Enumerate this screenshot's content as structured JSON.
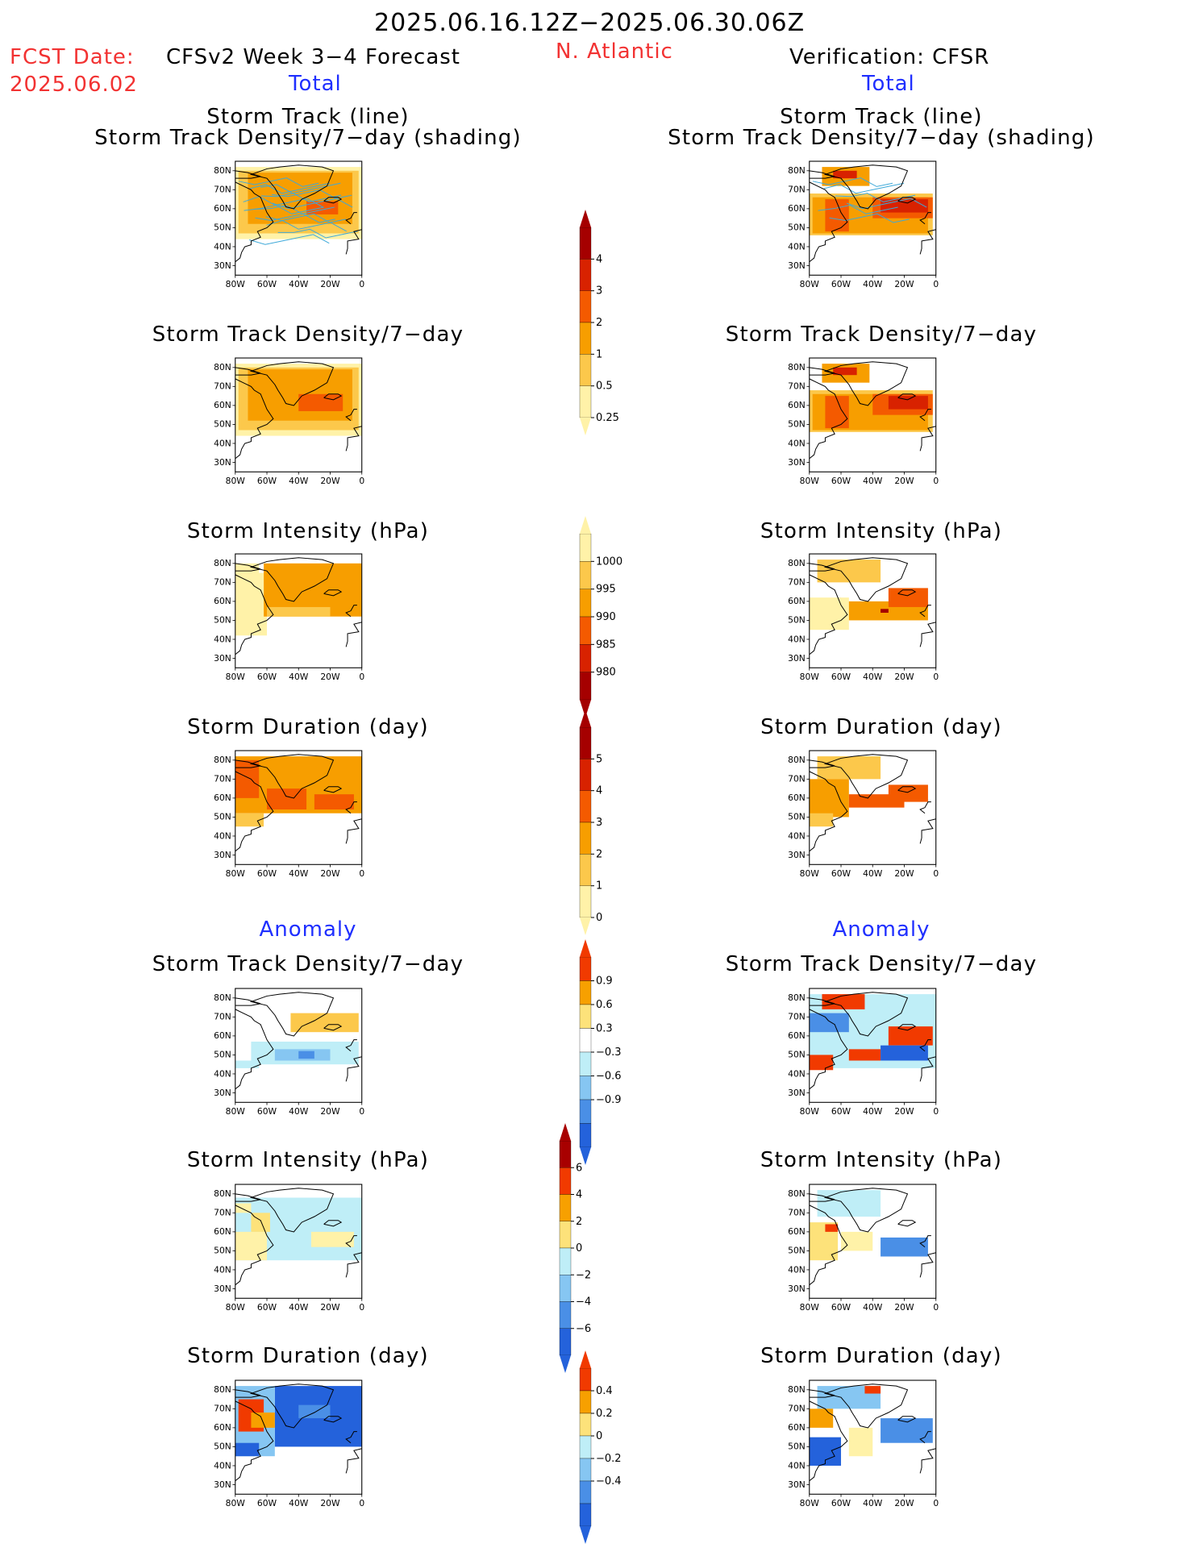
{
  "header": {
    "period": "2025.06.16.12Z−2025.06.30.06Z",
    "fcst_label": "FCST Date:",
    "fcst_date": "2025.06.02",
    "model_title": "CFSv2 Week 3−4 Forecast",
    "region": "N. Atlantic",
    "verification": "Verification: CFSR",
    "total_left": "Total",
    "total_right": "Total"
  },
  "sections": {
    "anomaly_left": "Anomaly",
    "anomaly_right": "Anomaly"
  },
  "panel_titles": {
    "track_line": "Storm Track (line)",
    "track_shading": "Storm Track Density/7−day (shading)",
    "density": "Storm Track Density/7−day",
    "intensity": "Storm Intensity (hPa)",
    "duration": "Storm Duration (day)"
  },
  "map_axes": {
    "lat_labels": [
      "80N",
      "70N",
      "60N",
      "50N",
      "40N",
      "30N"
    ],
    "lon_labels": [
      "80W",
      "60W",
      "40W",
      "20W",
      "0"
    ]
  },
  "colorbars": {
    "density": {
      "labels": [
        "4",
        "3",
        "2",
        "1",
        "0.5",
        "0.25"
      ],
      "colors": [
        "#a50000",
        "#d82200",
        "#f45a00",
        "#f79e00",
        "#fcc84b",
        "#fff2a8"
      ]
    },
    "intensity": {
      "labels": [
        "1000",
        "995",
        "990",
        "985",
        "980"
      ],
      "colors": [
        "#fff2a8",
        "#fcc84b",
        "#f79e00",
        "#f45a00",
        "#d82200",
        "#a50000"
      ]
    },
    "duration": {
      "labels": [
        "5",
        "4",
        "3",
        "2",
        "1",
        "0"
      ],
      "colors": [
        "#a50000",
        "#d82200",
        "#f45a00",
        "#f79e00",
        "#fcc84b",
        "#fff2a8"
      ]
    },
    "anom_density": {
      "labels": [
        "0.9",
        "0.6",
        "0.3",
        "−0.3",
        "−0.6",
        "−0.9"
      ],
      "colors": [
        "#f13a00",
        "#f7a000",
        "#fde27a",
        "#ffffff",
        "#bfeef7",
        "#86c6f2",
        "#4a8fe6",
        "#2462db"
      ]
    },
    "anom_intensity": {
      "labels": [
        "6",
        "4",
        "2",
        "0",
        "−2",
        "−4",
        "−6"
      ],
      "colors": [
        "#a80000",
        "#f13a00",
        "#f7a000",
        "#fde27a",
        "#bfeef7",
        "#86c6f2",
        "#4a8fe6",
        "#2462db"
      ]
    },
    "anom_duration": {
      "labels": [
        "0.4",
        "0.2",
        "0",
        "−0.2",
        "−0.4"
      ],
      "colors": [
        "#f13a00",
        "#f7a000",
        "#fde27a",
        "#bfeef7",
        "#86c6f2",
        "#4a8fe6",
        "#2462db"
      ]
    }
  },
  "colors": {
    "fcst_red": "#f23232",
    "anomaly_blue": "#1f2fff",
    "track_line_blue": "#3fa9d8"
  }
}
